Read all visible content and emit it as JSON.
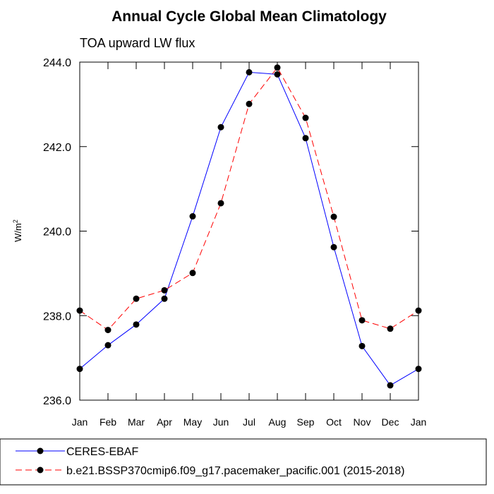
{
  "chart_data": {
    "type": "line",
    "title": "Annual Cycle Global Mean Climatology",
    "subtitle": "TOA upward LW flux",
    "ylabel": "W/m",
    "ylabel_superscript": "2",
    "ylim": [
      236.0,
      244.0
    ],
    "yticks": [
      236.0,
      238.0,
      240.0,
      242.0,
      244.0
    ],
    "ytick_labels": [
      "236.0",
      "238.0",
      "240.0",
      "242.0",
      "244.0"
    ],
    "categories": [
      "Jan",
      "Feb",
      "Mar",
      "Apr",
      "May",
      "Jun",
      "Jul",
      "Aug",
      "Sep",
      "Oct",
      "Nov",
      "Dec",
      "Jan"
    ],
    "grid": false,
    "legend_position": "bottom",
    "series": [
      {
        "name": "CERES-EBAF",
        "color": "#0000ff",
        "line_style": "solid",
        "marker": "filled-circle",
        "values": [
          236.74,
          237.3,
          237.79,
          238.4,
          240.35,
          242.46,
          243.76,
          243.71,
          242.2,
          239.62,
          237.28,
          236.35,
          236.74
        ]
      },
      {
        "name": "b.e21.BSSP370cmip6.f09_g17.pacemaker_pacific.001 (2015-2018)",
        "color": "#ff0000",
        "line_style": "dashed",
        "marker": "filled-circle",
        "values": [
          238.12,
          237.66,
          238.4,
          238.6,
          239.01,
          240.66,
          243.01,
          243.87,
          242.68,
          240.34,
          237.89,
          237.69,
          238.12
        ]
      }
    ]
  }
}
